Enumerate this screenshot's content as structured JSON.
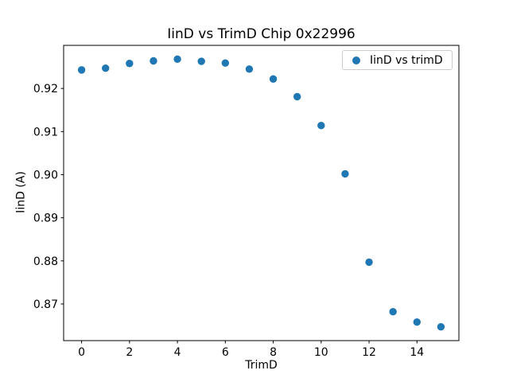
{
  "figure": {
    "background": "#ffffff"
  },
  "chart_data": {
    "type": "scatter",
    "title": "IinD vs TrimD Chip 0x22996",
    "xlabel": "TrimD",
    "ylabel": "IinD (A)",
    "legend": {
      "label": "IinD vs trimD",
      "position": "upper right"
    },
    "x": [
      0,
      1,
      2,
      3,
      4,
      5,
      6,
      7,
      8,
      9,
      10,
      11,
      12,
      13,
      14,
      15
    ],
    "series": [
      {
        "name": "IinD vs trimD",
        "marker_color": "#1f77b4",
        "values": [
          0.9243,
          0.9247,
          0.9258,
          0.9264,
          0.9268,
          0.9263,
          0.9259,
          0.9245,
          0.9222,
          0.9181,
          0.9114,
          0.9002,
          0.8797,
          0.8682,
          0.8658,
          0.8647
        ]
      }
    ],
    "xlim": [
      -0.75,
      15.75
    ],
    "ylim": [
      0.8615,
      0.93
    ],
    "xticks": [
      0,
      2,
      4,
      6,
      8,
      10,
      12,
      14
    ],
    "xtick_labels": [
      "0",
      "2",
      "4",
      "6",
      "8",
      "10",
      "12",
      "14"
    ],
    "yticks": [
      0.87,
      0.88,
      0.89,
      0.9,
      0.91,
      0.92
    ],
    "ytick_labels": [
      "0.87",
      "0.88",
      "0.89",
      "0.90",
      "0.91",
      "0.92"
    ],
    "grid": false,
    "axis_color": "#000000",
    "text_color": "#000000"
  }
}
